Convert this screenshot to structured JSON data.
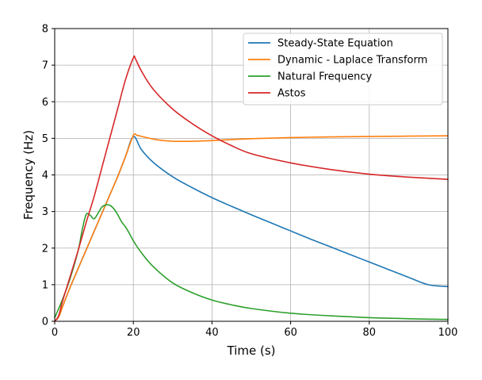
{
  "chart_data": {
    "type": "line",
    "title": "",
    "xlabel": "Time (s)",
    "ylabel": "Frequency (Hz)",
    "xlim": [
      0,
      100
    ],
    "ylim": [
      0,
      8
    ],
    "xticks": [
      0,
      20,
      40,
      60,
      80,
      100
    ],
    "yticks": [
      0,
      1,
      2,
      3,
      4,
      5,
      6,
      7,
      8
    ],
    "grid": true,
    "legend": "top-right",
    "series": [
      {
        "name": "Steady-State Equation",
        "color": "#1f77b4",
        "x": [
          0,
          1,
          2,
          4,
          6,
          8,
          10,
          12,
          14,
          16,
          18,
          20,
          22,
          25,
          30,
          35,
          40,
          45,
          50,
          55,
          60,
          65,
          70,
          75,
          80,
          85,
          90,
          95,
          100
        ],
        "y": [
          0,
          0.12,
          0.4,
          0.95,
          1.45,
          1.95,
          2.45,
          2.95,
          3.45,
          3.95,
          4.5,
          5.05,
          4.7,
          4.35,
          3.95,
          3.65,
          3.38,
          3.14,
          2.91,
          2.69,
          2.47,
          2.25,
          2.04,
          1.83,
          1.62,
          1.41,
          1.2,
          1.0,
          0.95
        ]
      },
      {
        "name": "Dynamic - Laplace Transform",
        "color": "#ff7f0e",
        "x": [
          0,
          1,
          2,
          4,
          6,
          8,
          10,
          12,
          14,
          16,
          18,
          20,
          21,
          23,
          26,
          30,
          35,
          40,
          50,
          60,
          70,
          80,
          90,
          100
        ],
        "y": [
          0,
          0.12,
          0.4,
          0.95,
          1.45,
          1.95,
          2.45,
          2.95,
          3.45,
          3.95,
          4.5,
          5.08,
          5.08,
          5.03,
          4.96,
          4.92,
          4.92,
          4.94,
          4.99,
          5.02,
          5.04,
          5.05,
          5.06,
          5.07
        ]
      },
      {
        "name": "Natural Frequency",
        "color": "#2ca02c",
        "x": [
          0,
          2,
          4,
          6,
          7,
          8,
          9,
          10,
          11,
          12,
          13,
          14,
          15,
          16,
          17,
          18,
          19,
          20,
          22,
          25,
          30,
          35,
          40,
          45,
          50,
          60,
          70,
          80,
          90,
          100
        ],
        "y": [
          0.1,
          0.6,
          1.2,
          1.95,
          2.5,
          2.92,
          2.9,
          2.8,
          2.95,
          3.12,
          3.18,
          3.17,
          3.08,
          2.92,
          2.72,
          2.58,
          2.4,
          2.2,
          1.88,
          1.5,
          1.05,
          0.78,
          0.58,
          0.45,
          0.35,
          0.22,
          0.15,
          0.1,
          0.07,
          0.05
        ]
      },
      {
        "name": "Astos",
        "color": "#d62728",
        "x": [
          0,
          1,
          2,
          4,
          6,
          8,
          10,
          12,
          14,
          16,
          18,
          20,
          20.5,
          22,
          25,
          30,
          35,
          40,
          45,
          50,
          60,
          70,
          80,
          90,
          100
        ],
        "y": [
          0,
          0.15,
          0.55,
          1.25,
          1.95,
          2.7,
          3.4,
          4.2,
          5.0,
          5.8,
          6.6,
          7.2,
          7.18,
          6.85,
          6.35,
          5.8,
          5.4,
          5.07,
          4.8,
          4.58,
          4.33,
          4.15,
          4.02,
          3.94,
          3.88
        ]
      }
    ]
  }
}
